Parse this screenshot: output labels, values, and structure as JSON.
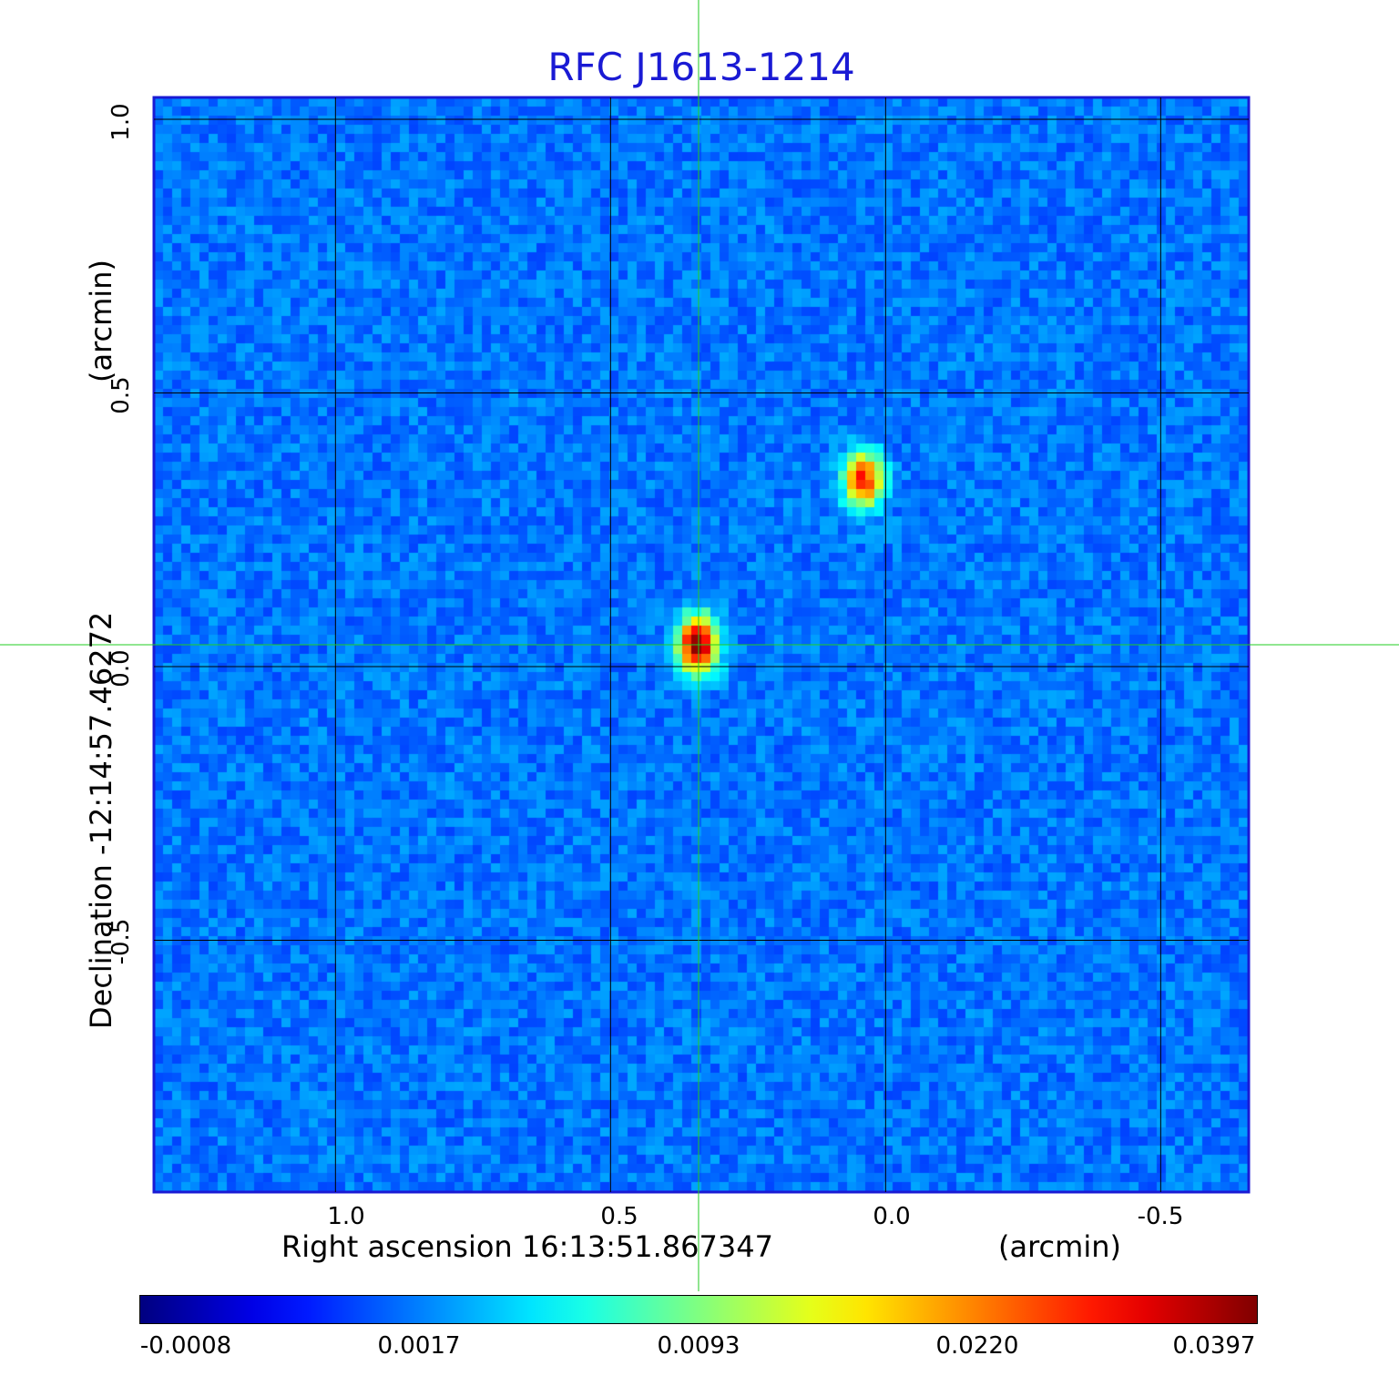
{
  "chart_data": {
    "type": "heatmap",
    "title": "RFC J1613-1214",
    "xlabel": "Right ascension  16:13:51.867347",
    "xunit": "(arcmin)",
    "ylabel": "Declination  -12:14:57.46272",
    "yunit": "(arcmin)",
    "xlim": [
      1.33,
      -0.66
    ],
    "ylim": [
      -0.96,
      1.04
    ],
    "x_ticks": [
      "1.0",
      "0.5",
      "0.0",
      "-0.5"
    ],
    "x_tick_values": [
      1.0,
      0.5,
      0.0,
      -0.5
    ],
    "y_ticks": [
      "-0.5",
      "0.0",
      "0.5",
      "1.0"
    ],
    "y_tick_values": [
      -0.5,
      0.0,
      0.5,
      1.0
    ],
    "grid": true,
    "colormap": "jet",
    "colorbar_ticks": [
      "-0.0008",
      "0.0017",
      "0.0093",
      "0.0220",
      "0.0397"
    ],
    "value_range": [
      -0.0008,
      0.0397
    ],
    "crosshair": {
      "x": 0.34,
      "y": 0.04
    },
    "sources": [
      {
        "x": 0.34,
        "y": 0.04,
        "peak": 0.0397
      },
      {
        "x": 0.04,
        "y": 0.34,
        "peak": 0.03
      }
    ],
    "colors": {
      "title": "#1a1ad4",
      "grid": "#000000",
      "crosshair": "#22cc22"
    }
  }
}
